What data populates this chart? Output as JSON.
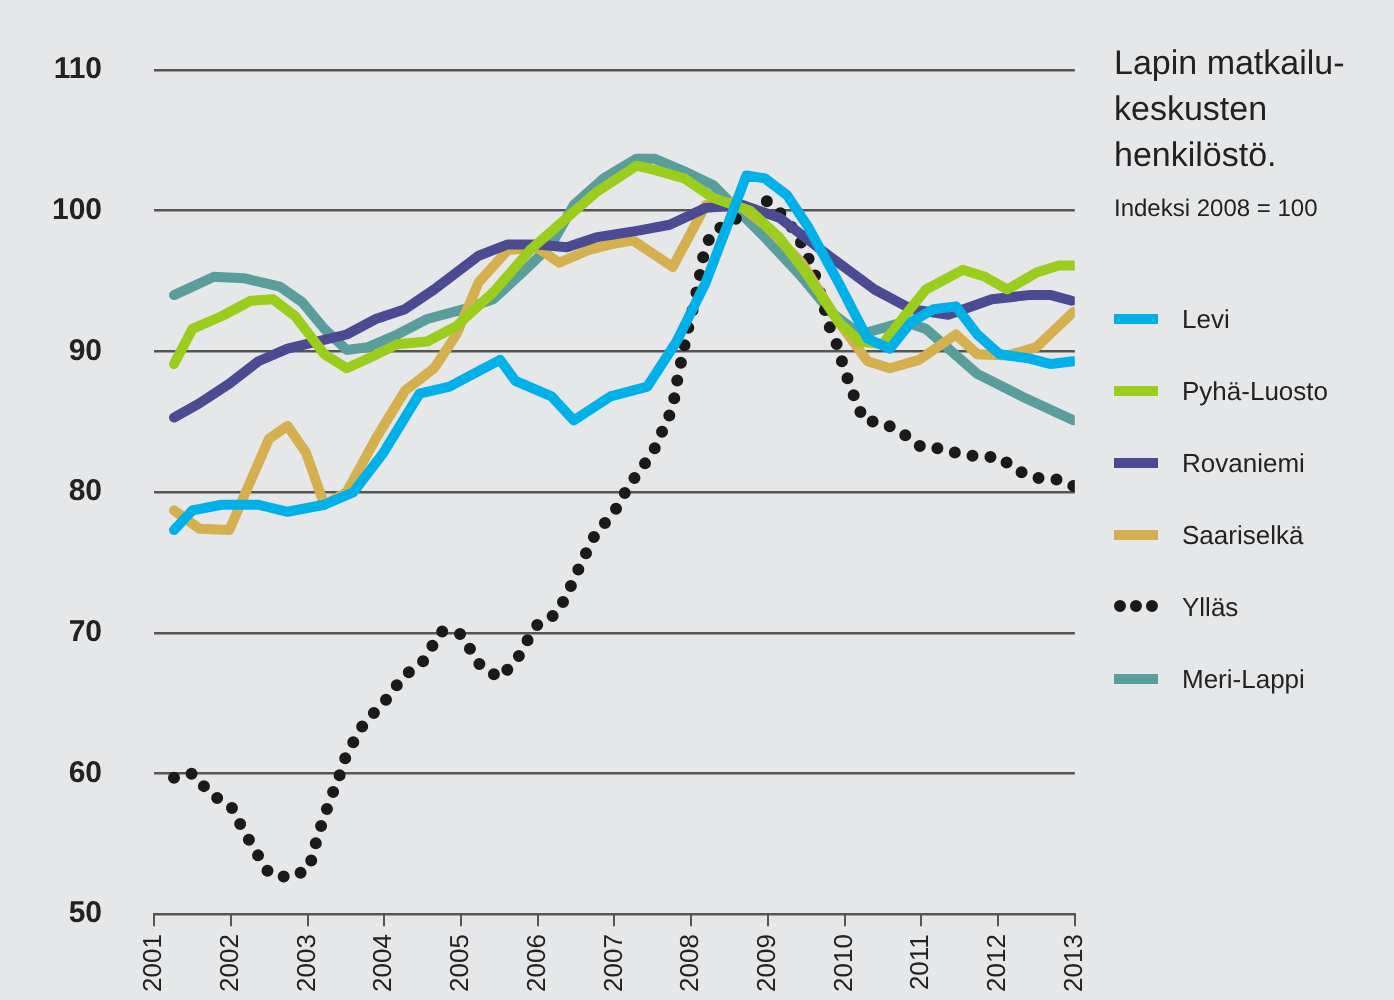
{
  "chart_data": {
    "type": "line",
    "title": "Lapin matkailu-keskusten henkilöstö.",
    "subtitle": "Indeksi 2008 = 100",
    "xlim": [
      2001,
      2013
    ],
    "xticks": [
      2001,
      2002,
      2003,
      2004,
      2005,
      2006,
      2007,
      2008,
      2009,
      2010,
      2011,
      2012,
      2013
    ],
    "ylim": [
      50,
      110
    ],
    "yticks": [
      50,
      60,
      70,
      80,
      90,
      100,
      110
    ],
    "grid": "y",
    "legend": "right",
    "marker": "none",
    "series": [
      {
        "name": "Levi",
        "color": "#00b0e8",
        "line_style": "solid",
        "x": [
          2001.26,
          2001.5,
          2001.88,
          2002.36,
          2002.74,
          2003.22,
          2003.6,
          2003.99,
          2004.46,
          2004.85,
          2005.23,
          2005.51,
          2005.71,
          2006.18,
          2006.47,
          2006.95,
          2007.43,
          2007.81,
          2008.19,
          2008.72,
          2008.96,
          2009.25,
          2009.53,
          2009.92,
          2010.3,
          2010.59,
          2010.87,
          2011.16,
          2011.45,
          2011.73,
          2012.02,
          2012.4,
          2012.69,
          2012.98
        ],
        "values": [
          77.3,
          78.7,
          79.1,
          79.1,
          78.6,
          79.1,
          80.0,
          82.8,
          87.0,
          87.5,
          88.6,
          89.4,
          87.9,
          86.8,
          85.1,
          86.8,
          87.5,
          90.7,
          94.9,
          102.5,
          102.3,
          101.1,
          98.8,
          94.9,
          90.9,
          90.2,
          92.1,
          93.0,
          93.2,
          91.2,
          89.8,
          89.5,
          89.1,
          89.3
        ]
      },
      {
        "name": "Pyhä-Luosto",
        "color": "#9acd1c",
        "line_style": "solid",
        "x": [
          2001.26,
          2001.5,
          2001.88,
          2002.26,
          2002.55,
          2002.84,
          2003.22,
          2003.51,
          2003.79,
          2004.17,
          2004.56,
          2004.94,
          2005.42,
          2005.9,
          2006.38,
          2006.76,
          2007.29,
          2007.52,
          2007.91,
          2008.29,
          2008.77,
          2009.15,
          2009.53,
          2009.92,
          2010.2,
          2010.49,
          2010.78,
          2011.06,
          2011.54,
          2011.83,
          2012.12,
          2012.5,
          2012.79,
          2012.98
        ],
        "values": [
          89.1,
          91.6,
          92.5,
          93.6,
          93.7,
          92.5,
          89.8,
          88.8,
          89.5,
          90.5,
          90.7,
          91.8,
          94.2,
          97.2,
          99.5,
          101.3,
          103.2,
          102.9,
          102.3,
          100.9,
          100.0,
          98.1,
          95.3,
          92.1,
          90.7,
          90.5,
          92.5,
          94.4,
          95.8,
          95.3,
          94.4,
          95.6,
          96.1,
          96.1
        ]
      },
      {
        "name": "Rovaniemi",
        "color": "#4b4a93",
        "line_style": "solid",
        "x": [
          2001.26,
          2001.59,
          2001.98,
          2002.36,
          2002.74,
          2003.12,
          2003.51,
          2003.89,
          2004.27,
          2004.65,
          2005.23,
          2005.61,
          2005.99,
          2006.38,
          2006.76,
          2007.33,
          2007.72,
          2008.19,
          2008.67,
          2009.15,
          2009.82,
          2010.39,
          2010.87,
          2011.35,
          2011.92,
          2012.4,
          2012.69,
          2012.96
        ],
        "values": [
          85.3,
          86.3,
          87.7,
          89.3,
          90.2,
          90.7,
          91.2,
          92.3,
          93.0,
          94.4,
          96.8,
          97.6,
          97.6,
          97.4,
          98.1,
          98.6,
          99.0,
          100.2,
          100.4,
          99.5,
          96.7,
          94.4,
          93.0,
          92.6,
          93.7,
          94.0,
          94.0,
          93.6
        ]
      },
      {
        "name": "Saariselkä",
        "color": "#d4b04f",
        "line_style": "solid",
        "x": [
          2001.26,
          2001.59,
          2001.98,
          2002.5,
          2002.74,
          2002.98,
          2003.22,
          2003.51,
          2003.89,
          2004.27,
          2004.65,
          2004.94,
          2005.23,
          2005.61,
          2005.99,
          2006.28,
          2006.66,
          2006.95,
          2007.24,
          2007.76,
          2008.19,
          2008.58,
          2008.96,
          2009.44,
          2009.92,
          2010.3,
          2010.59,
          2010.97,
          2011.45,
          2011.73,
          2012.12,
          2012.5,
          2012.98
        ],
        "values": [
          78.7,
          77.4,
          77.3,
          83.8,
          84.7,
          82.8,
          79.1,
          80.0,
          83.8,
          87.2,
          88.8,
          91.2,
          94.9,
          97.2,
          97.4,
          96.3,
          97.2,
          97.6,
          97.9,
          96.0,
          100.4,
          100.6,
          99.0,
          96.3,
          92.1,
          89.3,
          88.8,
          89.4,
          91.2,
          89.8,
          89.7,
          90.3,
          92.8
        ]
      },
      {
        "name": "Ylläs",
        "color": "#1a1a1a",
        "line_style": "dotted",
        "x": [
          2001.26,
          2001.5,
          2001.75,
          2002.01,
          2002.16,
          2002.33,
          2002.5,
          2002.76,
          2003.02,
          2003.1,
          2003.19,
          2003.3,
          2003.42,
          2003.51,
          2003.74,
          2003.99,
          2004.25,
          2004.51,
          2004.74,
          2005.0,
          2005.26,
          2005.51,
          2005.74,
          2005.86,
          2006.0,
          2006.26,
          2006.43,
          2006.58,
          2006.75,
          2007.0,
          2007.12,
          2007.26,
          2007.5,
          2007.76,
          2007.81,
          2007.95,
          2008.03,
          2008.1,
          2008.16,
          2008.26,
          2008.98,
          2009.23,
          2009.37,
          2009.48,
          2009.63,
          2009.8,
          2009.92,
          2009.99,
          2010.11,
          2010.25,
          2010.51,
          2010.75,
          2011.0,
          2011.25,
          2011.51,
          2011.76,
          2012.01,
          2012.26,
          2012.51,
          2012.76,
          2013.0
        ],
        "values": [
          59.7,
          60.0,
          58.5,
          57.6,
          56.0,
          54.4,
          52.9,
          52.6,
          53.2,
          54.9,
          56.5,
          58.2,
          59.9,
          61.4,
          63.6,
          65.0,
          66.9,
          68.0,
          70.1,
          69.9,
          67.6,
          66.8,
          68.2,
          69.4,
          70.6,
          71.4,
          73.3,
          75.1,
          77.0,
          78.6,
          79.8,
          81.0,
          82.8,
          86.0,
          87.7,
          91.4,
          93.2,
          95.0,
          96.8,
          98.4,
          100.7,
          99.5,
          98.3,
          97.3,
          95.2,
          91.8,
          90.2,
          88.8,
          87.0,
          85.1,
          84.9,
          84.2,
          83.2,
          83.1,
          82.7,
          82.5,
          82.5,
          81.5,
          81.0,
          80.9,
          80.4
        ]
      },
      {
        "name": "Meri-Lappi",
        "color": "#5a9e9c",
        "line_style": "solid",
        "x": [
          2001.26,
          2001.78,
          2002.17,
          2002.64,
          2002.93,
          2003.22,
          2003.51,
          2003.79,
          2004.17,
          2004.56,
          2005.04,
          2005.42,
          2005.8,
          2006.18,
          2006.47,
          2006.86,
          2007.29,
          2007.52,
          2007.91,
          2008.29,
          2008.96,
          2009.44,
          2009.82,
          2010.2,
          2010.78,
          2011.06,
          2011.73,
          2012.31,
          2012.98
        ],
        "values": [
          94.0,
          95.3,
          95.2,
          94.6,
          93.5,
          91.6,
          90.1,
          90.3,
          91.2,
          92.3,
          93.0,
          93.7,
          95.6,
          97.6,
          100.4,
          102.3,
          103.7,
          103.7,
          102.8,
          101.8,
          98.1,
          95.3,
          92.8,
          91.2,
          92.1,
          91.6,
          88.4,
          86.8,
          85.1
        ]
      }
    ]
  }
}
